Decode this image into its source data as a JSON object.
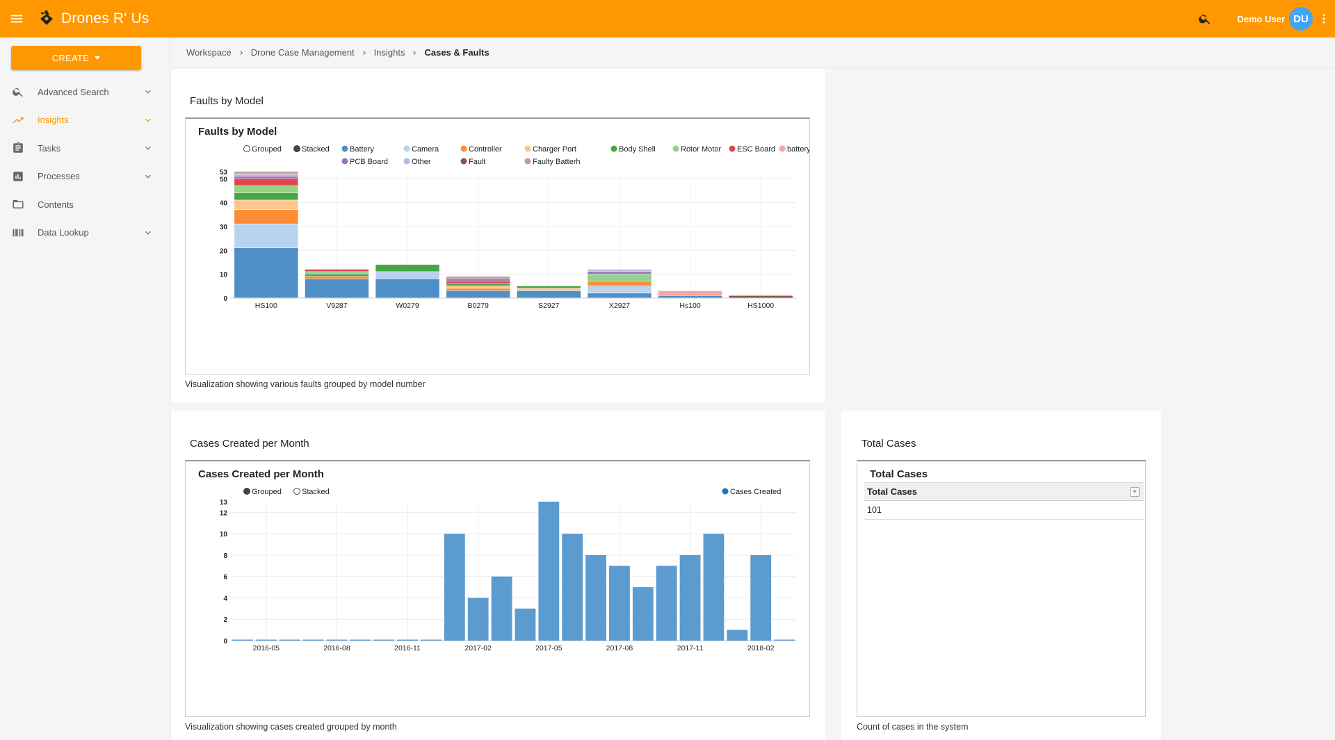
{
  "app": {
    "title": "Drones R' Us"
  },
  "topbar": {
    "user_name": "Demo User",
    "avatar_initials": "DU"
  },
  "sidebar": {
    "create_label": "CREATE",
    "items": [
      {
        "label": "Advanced Search",
        "icon": "search-icon",
        "expandable": true,
        "active": false
      },
      {
        "label": "Insights",
        "icon": "trending-up-icon",
        "expandable": true,
        "active": true
      },
      {
        "label": "Tasks",
        "icon": "clipboard-icon",
        "expandable": true,
        "active": false
      },
      {
        "label": "Processes",
        "icon": "bar-chart-icon",
        "expandable": true,
        "active": false
      },
      {
        "label": "Contents",
        "icon": "folder-icon",
        "expandable": false,
        "active": false
      },
      {
        "label": "Data Lookup",
        "icon": "barcode-icon",
        "expandable": true,
        "active": false
      }
    ]
  },
  "breadcrumb": [
    "Workspace",
    "Drone Case Management",
    "Insights",
    "Cases & Faults"
  ],
  "colors": {
    "accent": "#ff9800",
    "avatar": "#42a5f5",
    "bar_blue": "#5b9bd0"
  },
  "faults_panel": {
    "panel_title": "Faults by Model",
    "chart_title": "Faults by Model",
    "mode_options": [
      {
        "label": "Grouped",
        "selected": false
      },
      {
        "label": "Stacked",
        "selected": true
      }
    ],
    "caption": "Visualization showing various faults grouped by model number"
  },
  "cases_panel": {
    "panel_title": "Cases Created per Month",
    "chart_title": "Cases Created per Month",
    "mode_options": [
      {
        "label": "Grouped",
        "selected": true
      },
      {
        "label": "Stacked",
        "selected": false
      }
    ],
    "caption": "Visualization showing cases created grouped by month"
  },
  "total_panel": {
    "panel_title": "Total Cases",
    "table_title": "Total Cases",
    "column_header": "Total Cases",
    "value": "101",
    "caption": "Count of cases in the system"
  },
  "chart_data": [
    {
      "type": "bar",
      "stacked": true,
      "title": "Faults by Model",
      "categories": [
        "HS100",
        "V9287",
        "W0279",
        "B0279",
        "S2927",
        "X2927",
        "Hs100",
        "HS1000"
      ],
      "ylim": [
        0,
        53
      ],
      "yticks": [
        0,
        10,
        20,
        30,
        40,
        50,
        53
      ],
      "legend_position": "top",
      "grid": true,
      "series": [
        {
          "name": "Battery",
          "color": "#4e8fc7",
          "values": [
            21,
            8,
            8,
            3,
            3,
            2,
            1,
            0
          ]
        },
        {
          "name": "Camera",
          "color": "#b9d2ee",
          "values": [
            10,
            0,
            3,
            0,
            0,
            3,
            0,
            0
          ]
        },
        {
          "name": "Controller",
          "color": "#ff8c33",
          "values": [
            6,
            1,
            0,
            1,
            0,
            2,
            0,
            0
          ]
        },
        {
          "name": "Charger Port",
          "color": "#fdc690",
          "values": [
            4,
            0,
            0,
            1,
            1,
            0,
            0,
            0
          ]
        },
        {
          "name": "Body Shell",
          "color": "#44a845",
          "values": [
            3,
            1,
            3,
            1,
            1,
            0,
            0,
            0
          ]
        },
        {
          "name": "Rotor Motor",
          "color": "#95d28a",
          "values": [
            3,
            1,
            0,
            0,
            0,
            3,
            0,
            0
          ]
        },
        {
          "name": "ESC Board",
          "color": "#e0474c",
          "values": [
            3,
            1,
            0,
            1,
            0,
            0,
            0,
            0
          ]
        },
        {
          "name": "battery",
          "color": "#f6a5a5",
          "values": [
            0,
            0,
            0,
            0,
            0,
            0,
            2,
            0
          ]
        },
        {
          "name": "PCB Board",
          "color": "#9a72c2",
          "values": [
            1,
            0,
            0,
            1,
            0,
            1,
            0,
            0
          ]
        },
        {
          "name": "Other",
          "color": "#c6b4dd",
          "values": [
            1,
            0,
            0,
            0,
            0,
            1,
            0,
            0
          ]
        },
        {
          "name": "Fault",
          "color": "#8c564b",
          "values": [
            0,
            0,
            0,
            0,
            0,
            0,
            0,
            1
          ]
        },
        {
          "name": "Faulty Batterh",
          "color": "#c49c94",
          "values": [
            1,
            0,
            0,
            1,
            0,
            0,
            0,
            0
          ]
        }
      ]
    },
    {
      "type": "bar",
      "title": "Cases Created per Month",
      "categories": [
        "2016-04",
        "2016-05",
        "2016-06",
        "2016-07",
        "2016-08",
        "2016-09",
        "2016-10",
        "2016-11",
        "2016-12",
        "2017-01",
        "2017-02",
        "2017-03",
        "2017-04",
        "2017-05",
        "2017-06",
        "2017-07",
        "2017-08",
        "2017-09",
        "2017-10",
        "2017-11",
        "2017-12",
        "2018-01",
        "2018-02",
        "2018-03"
      ],
      "xticks": [
        "2016-05",
        "2016-08",
        "2016-11",
        "2017-02",
        "2017-05",
        "2017-08",
        "2017-11",
        "2018-02"
      ],
      "ylim": [
        0,
        13
      ],
      "yticks": [
        0,
        2,
        4,
        6,
        8,
        10,
        12,
        13
      ],
      "legend_position": "top-right",
      "grid": true,
      "series": [
        {
          "name": "Cases Created",
          "color": "#5b9bd0",
          "values": [
            0,
            0,
            0,
            0,
            0,
            0,
            0,
            0,
            0,
            10,
            4,
            6,
            3,
            13,
            10,
            8,
            7,
            5,
            7,
            8,
            10,
            1,
            8,
            0
          ]
        }
      ]
    }
  ]
}
